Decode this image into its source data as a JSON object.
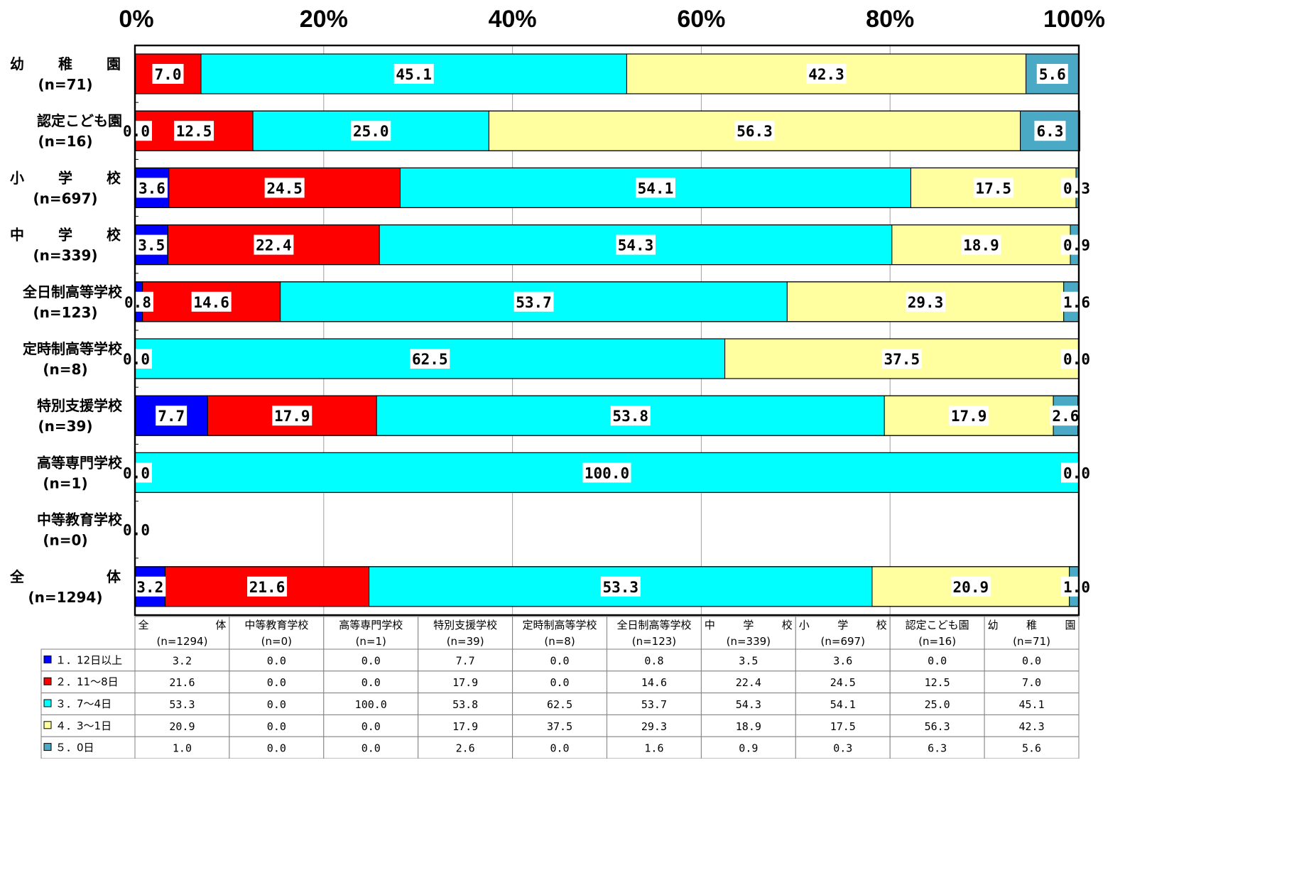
{
  "chart_data": {
    "type": "bar",
    "orientation": "horizontal",
    "stacked": true,
    "percent_axis": true,
    "xlim": [
      0,
      100
    ],
    "x_ticks": [
      "0%",
      "20%",
      "40%",
      "60%",
      "80%",
      "100%"
    ],
    "x_ticks_position": "top",
    "grid": true,
    "legend": "table-bottom",
    "categories": [
      {
        "name": "幼　　稚　　園",
        "n": "(n=71)"
      },
      {
        "name": "認定こども園",
        "n": "(n=16)"
      },
      {
        "name": "小　　学　　校",
        "n": "(n=697)"
      },
      {
        "name": "中　　学　　校",
        "n": "(n=339)"
      },
      {
        "name": "全日制高等学校",
        "n": "(n=123)"
      },
      {
        "name": "定時制高等学校",
        "n": "(n=8)"
      },
      {
        "name": "特別支援学校",
        "n": "(n=39)"
      },
      {
        "name": "高等専門学校",
        "n": "(n=1)"
      },
      {
        "name": "中等教育学校",
        "n": "(n=0)"
      },
      {
        "name": "全　　　　　体",
        "n": "(n=1294)"
      }
    ],
    "series": [
      {
        "name": "１．12日以上",
        "color": "#0000ff",
        "values": [
          0.0,
          0.0,
          3.6,
          3.5,
          0.8,
          0.0,
          7.7,
          0.0,
          0.0,
          3.2
        ]
      },
      {
        "name": "２．11～8日",
        "color": "#ff0000",
        "values": [
          7.0,
          12.5,
          24.5,
          22.4,
          14.6,
          0.0,
          17.9,
          0.0,
          0.0,
          21.6
        ]
      },
      {
        "name": "３．7～4日",
        "color": "#00ffff",
        "values": [
          45.1,
          25.0,
          54.1,
          54.3,
          53.7,
          62.5,
          53.8,
          100.0,
          0.0,
          53.3
        ]
      },
      {
        "name": "４．3～1日",
        "color": "#ffffa0",
        "values": [
          42.3,
          56.3,
          17.5,
          18.9,
          29.3,
          37.5,
          17.9,
          0.0,
          0.0,
          20.9
        ]
      },
      {
        "name": "５．0日",
        "color": "#4aaac6",
        "values": [
          5.6,
          6.3,
          0.3,
          0.9,
          1.6,
          0.0,
          2.6,
          0.0,
          0.0,
          1.0
        ]
      }
    ],
    "bar_labels": [
      [
        {
          "series": 1,
          "text": "7.0"
        },
        {
          "series": 2,
          "text": "45.1"
        },
        {
          "series": 3,
          "text": "42.3"
        },
        {
          "series": 4,
          "text": "5.6"
        }
      ],
      [
        {
          "series": 0,
          "text": "0.0"
        },
        {
          "series": 1,
          "text": "12.5"
        },
        {
          "series": 2,
          "text": "25.0"
        },
        {
          "series": 3,
          "text": "56.3"
        },
        {
          "series": 4,
          "text": "6.3"
        }
      ],
      [
        {
          "series": 0,
          "text": "3.6"
        },
        {
          "series": 1,
          "text": "24.5"
        },
        {
          "series": 2,
          "text": "54.1"
        },
        {
          "series": 3,
          "text": "17.5"
        },
        {
          "series": 4,
          "text": "0.3"
        }
      ],
      [
        {
          "series": 0,
          "text": "3.5"
        },
        {
          "series": 1,
          "text": "22.4"
        },
        {
          "series": 2,
          "text": "54.3"
        },
        {
          "series": 3,
          "text": "18.9"
        },
        {
          "series": 4,
          "text": "0.9"
        }
      ],
      [
        {
          "series": 0,
          "text": "0.8"
        },
        {
          "series": 1,
          "text": "14.6"
        },
        {
          "series": 2,
          "text": "53.7"
        },
        {
          "series": 3,
          "text": "29.3"
        },
        {
          "series": 4,
          "text": "1.6"
        }
      ],
      [
        {
          "series": 0,
          "text": "0.0"
        },
        {
          "series": 2,
          "text": "62.5"
        },
        {
          "series": 3,
          "text": "37.5"
        },
        {
          "series": 4,
          "text": "0.0"
        }
      ],
      [
        {
          "series": 0,
          "text": "7.7"
        },
        {
          "series": 1,
          "text": "17.9"
        },
        {
          "series": 2,
          "text": "53.8"
        },
        {
          "series": 3,
          "text": "17.9"
        },
        {
          "series": 4,
          "text": "2.6"
        }
      ],
      [
        {
          "series": 0,
          "text": "0.0"
        },
        {
          "series": 2,
          "text": "100.0"
        },
        {
          "series": 4,
          "text": "0.0"
        }
      ],
      [
        {
          "series": 0,
          "text": "0.0"
        }
      ],
      [
        {
          "series": 0,
          "text": "3.2"
        },
        {
          "series": 1,
          "text": "21.6"
        },
        {
          "series": 2,
          "text": "53.3"
        },
        {
          "series": 3,
          "text": "20.9"
        },
        {
          "series": 4,
          "text": "1.0"
        }
      ]
    ],
    "data_table": {
      "columns": [
        {
          "name": "全　　　　　体",
          "n": "(n=1294)"
        },
        {
          "name": "中等教育学校",
          "n": "(n=0)"
        },
        {
          "name": "高等専門学校",
          "n": "(n=1)"
        },
        {
          "name": "特別支援学校",
          "n": "(n=39)"
        },
        {
          "name": "定時制高等学校",
          "n": "(n=8)"
        },
        {
          "name": "全日制高等学校",
          "n": "(n=123)"
        },
        {
          "name": "中　　学　　校",
          "n": "(n=339)"
        },
        {
          "name": "小　　学　　校",
          "n": "(n=697)"
        },
        {
          "name": "認定こども園",
          "n": "(n=16)"
        },
        {
          "name": "幼　　稚　　園",
          "n": "(n=71)"
        }
      ],
      "rows": [
        {
          "label": "１．12日以上",
          "color": "#0000ff",
          "values": [
            "3.2",
            "0.0",
            "0.0",
            "7.7",
            "0.0",
            "0.8",
            "3.5",
            "3.6",
            "0.0",
            "0.0"
          ]
        },
        {
          "label": "２．11～8日",
          "color": "#ff0000",
          "values": [
            "21.6",
            "0.0",
            "0.0",
            "17.9",
            "0.0",
            "14.6",
            "22.4",
            "24.5",
            "12.5",
            "7.0"
          ]
        },
        {
          "label": "３．7～4日",
          "color": "#00ffff",
          "values": [
            "53.3",
            "0.0",
            "100.0",
            "53.8",
            "62.5",
            "53.7",
            "54.3",
            "54.1",
            "25.0",
            "45.1"
          ]
        },
        {
          "label": "４．3～1日",
          "color": "#ffffa0",
          "values": [
            "20.9",
            "0.0",
            "0.0",
            "17.9",
            "37.5",
            "29.3",
            "18.9",
            "17.5",
            "56.3",
            "42.3"
          ]
        },
        {
          "label": "５．0日",
          "color": "#4aaac6",
          "values": [
            "1.0",
            "0.0",
            "0.0",
            "2.6",
            "0.0",
            "1.6",
            "0.9",
            "0.3",
            "6.3",
            "5.6"
          ]
        }
      ]
    }
  }
}
